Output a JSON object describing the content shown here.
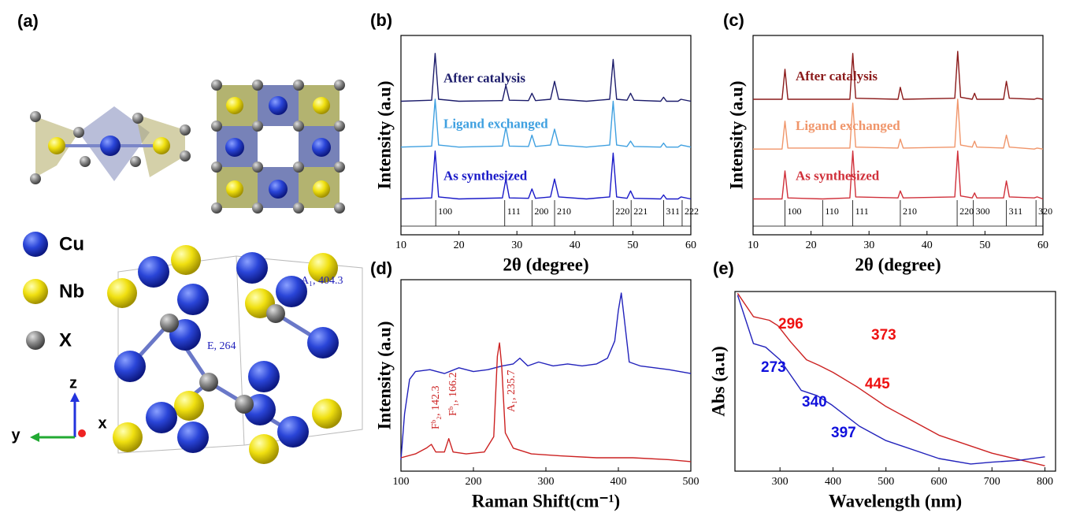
{
  "panel_a": {
    "label": "(a)",
    "legend": [
      "Cu",
      "Nb",
      "X"
    ],
    "axes": [
      "z",
      "y",
      "x"
    ]
  },
  "chart_data": [
    {
      "type": "line",
      "panel": "(b)",
      "x_label": "2θ (degree)",
      "y_label": "Intensity (a.u)",
      "xlim": [
        10,
        60
      ],
      "ylim": [
        0,
        100
      ],
      "xticks": [
        10,
        20,
        30,
        40,
        50,
        60
      ],
      "x": [
        10,
        15.3,
        15.9,
        16.5,
        20,
        27.5,
        28.1,
        28.7,
        32,
        32.6,
        33.2,
        35.8,
        36.5,
        37.2,
        42,
        46,
        46.6,
        47.2,
        49,
        49.6,
        50.2,
        54.8,
        55.3,
        55.8,
        57.8,
        58.3,
        60
      ],
      "series": [
        {
          "name": "After catalysis",
          "color": "#1c1c6b",
          "values": [
            67,
            67.5,
            91,
            68,
            67,
            67.3,
            75,
            67.5,
            67.3,
            71,
            67.3,
            68,
            77,
            68,
            67,
            68,
            88,
            68,
            67.5,
            71,
            67.5,
            67,
            69,
            67,
            67,
            68,
            67
          ]
        },
        {
          "name": "Ligand exchanged",
          "color": "#3fa0e0",
          "values": [
            44,
            44.5,
            68,
            45,
            44,
            44.5,
            54,
            44.5,
            44.3,
            50,
            44.3,
            45,
            53,
            45,
            44,
            45,
            67,
            45,
            44.3,
            47,
            44.3,
            44,
            46,
            44,
            44,
            45,
            44
          ]
        },
        {
          "name": "As synthesized",
          "color": "#1a1ac8",
          "values": [
            18,
            18.5,
            42,
            19,
            18,
            18.5,
            28,
            18.5,
            18.3,
            23,
            18.3,
            19,
            28,
            19,
            18,
            19,
            41,
            19,
            18.3,
            22,
            18.3,
            18,
            20,
            18,
            18,
            19,
            18
          ]
        }
      ],
      "references": {
        "positions": [
          16,
          27.9,
          32.6,
          36.5,
          46.6,
          49.7,
          55.3,
          58.5
        ],
        "labels": [
          "100",
          "111",
          "200",
          "210",
          "220",
          "221",
          "311",
          "222"
        ]
      }
    },
    {
      "type": "line",
      "panel": "(c)",
      "x_label": "2θ (degree)",
      "y_label": "Intensity (a.u)",
      "xlim": [
        10,
        60
      ],
      "ylim": [
        0,
        100
      ],
      "xticks": [
        10,
        20,
        30,
        40,
        50,
        60
      ],
      "x": [
        10,
        15,
        15.5,
        16,
        22,
        26.7,
        27.2,
        27.7,
        35,
        35.4,
        35.9,
        44.8,
        45.3,
        45.8,
        47.8,
        48.2,
        48.6,
        53.2,
        53.7,
        54.2,
        58.5,
        59,
        60
      ],
      "series": [
        {
          "name": "After catalysis",
          "color": "#8b1a1a",
          "values": [
            68,
            68,
            83,
            68,
            68,
            68,
            91,
            68.5,
            68,
            74,
            68,
            68.5,
            92,
            69,
            68,
            71,
            68,
            68,
            77,
            68.5,
            68,
            68.5,
            68
          ]
        },
        {
          "name": "Ligand exchanged",
          "color": "#f0956a",
          "values": [
            43,
            43,
            57,
            43.5,
            43.5,
            43.5,
            66,
            44,
            43.5,
            48,
            43.5,
            44,
            68,
            45,
            44,
            47,
            44,
            43.5,
            50,
            44,
            43,
            43.5,
            43
          ]
        },
        {
          "name": "As synthesized",
          "color": "#d0303a",
          "values": [
            18,
            18,
            32,
            18.5,
            18,
            18.5,
            42,
            19,
            18.5,
            22,
            18.5,
            19,
            42,
            19.5,
            18.5,
            21,
            18.5,
            18.5,
            27,
            19,
            18.5,
            19,
            18
          ]
        }
      ],
      "references": {
        "positions": [
          15.5,
          22,
          27.2,
          35.4,
          45.2,
          48,
          53.7,
          58.8
        ],
        "labels": [
          "100",
          "110",
          "111",
          "210",
          "220",
          "300",
          "311",
          "320"
        ]
      }
    },
    {
      "type": "line",
      "panel": "(d)",
      "x_label": "Raman Shift(cm⁻¹)",
      "y_label": "Intensity (a.u)",
      "xlim": [
        100,
        500
      ],
      "ylim": [
        0,
        100
      ],
      "xticks": [
        100,
        200,
        300,
        400,
        500
      ],
      "series": [
        {
          "color": "#2222bb",
          "x": [
            100,
            105,
            112,
            120,
            140,
            160,
            180,
            200,
            220,
            240,
            255,
            264,
            275,
            290,
            310,
            330,
            350,
            370,
            385,
            395,
            400,
            404,
            408,
            415,
            430,
            450,
            470,
            500
          ],
          "values": [
            6,
            30,
            48,
            52,
            53,
            51,
            54,
            52,
            53,
            55,
            56,
            59,
            55,
            57,
            55,
            56,
            55,
            56,
            59,
            68,
            84,
            93,
            80,
            57,
            55,
            54,
            53,
            51
          ]
        },
        {
          "color": "#cc2222",
          "x": [
            100,
            120,
            135,
            142,
            148,
            160,
            166,
            172,
            190,
            215,
            228,
            233,
            236,
            239,
            244,
            255,
            280,
            320,
            370,
            420,
            470,
            500
          ],
          "values": [
            7,
            9,
            12,
            14,
            10,
            10,
            17,
            10,
            9,
            10,
            18,
            60,
            67,
            55,
            20,
            12,
            9,
            8,
            7,
            7,
            6,
            5
          ]
        }
      ],
      "annotations": [
        {
          "text": "E, 264",
          "color": "#2222bb"
        },
        {
          "text": "A₁, 404.3",
          "color": "#2222bb"
        },
        {
          "text": "Fᵇ₂, 142.3",
          "color": "#cc2222"
        },
        {
          "text": "Fᵇ₁, 166.2",
          "color": "#cc2222"
        },
        {
          "text": "A₁, 235.7",
          "color": "#cc2222"
        }
      ]
    },
    {
      "type": "line",
      "panel": "(e)",
      "x_label": "Wavelength (nm)",
      "y_label": "Abs (a.u)",
      "xlim": [
        215,
        820
      ],
      "ylim": [
        0,
        100
      ],
      "xticks": [
        300,
        400,
        500,
        600,
        700,
        800
      ],
      "series": [
        {
          "color": "#cc2222",
          "x": [
            220,
            250,
            280,
            296,
            320,
            350,
            373,
            400,
            445,
            500,
            600,
            700,
            800
          ],
          "values": [
            99,
            86,
            84,
            81,
            72,
            62,
            59,
            55,
            47,
            36,
            20,
            10,
            3
          ]
        },
        {
          "color": "#2222bb",
          "x": [
            220,
            250,
            273,
            300,
            340,
            370,
            397,
            450,
            500,
            600,
            660,
            700,
            750,
            800
          ],
          "values": [
            98,
            71,
            69,
            62,
            45,
            42,
            37,
            25,
            17,
            7,
            4,
            5,
            6,
            8
          ]
        }
      ],
      "annotations": [
        {
          "text": "296",
          "color": "#ee1111"
        },
        {
          "text": "373",
          "color": "#ee1111"
        },
        {
          "text": "445",
          "color": "#ee1111"
        },
        {
          "text": "273",
          "color": "#1111dd"
        },
        {
          "text": "340",
          "color": "#1111dd"
        },
        {
          "text": "397",
          "color": "#1111dd"
        }
      ]
    }
  ]
}
